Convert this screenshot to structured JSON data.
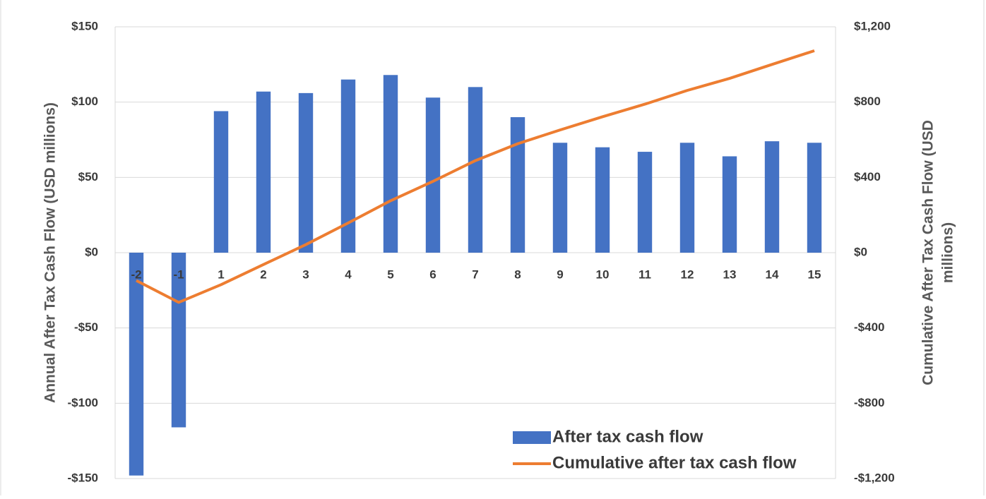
{
  "chart_data": {
    "type": "bar_line",
    "ylabel": "Annual After Tax Cash Flow (USD millions)",
    "y2label": [
      "Cumulative After Tax Cash Flow (USD",
      "millions)"
    ],
    "categories": [
      "-2",
      "-1",
      "1",
      "2",
      "3",
      "4",
      "5",
      "6",
      "7",
      "8",
      "9",
      "10",
      "11",
      "12",
      "13",
      "14",
      "15"
    ],
    "series": [
      {
        "name": "After tax cash flow",
        "type": "bar",
        "color": "#4472c4",
        "axis": "y",
        "values": [
          -148,
          -116,
          94,
          107,
          106,
          115,
          118,
          103,
          110,
          90,
          73,
          70,
          67,
          73,
          64,
          74,
          73
        ]
      },
      {
        "name": "Cumulative after tax cash flow",
        "type": "line",
        "color": "#ed7d31",
        "axis": "y2",
        "values": [
          -148,
          -264,
          -170,
          -63,
          43,
          158,
          276,
          379,
          489,
          579,
          652,
          722,
          789,
          862,
          926,
          1000,
          1073
        ]
      }
    ],
    "ylim": [
      -150,
      150
    ],
    "yticks": [
      {
        "value": -150,
        "label": "-$150"
      },
      {
        "value": -100,
        "label": "-$100"
      },
      {
        "value": -50,
        "label": "-$50"
      },
      {
        "value": 0,
        "label": "$0"
      },
      {
        "value": 50,
        "label": "$50"
      },
      {
        "value": 100,
        "label": "$100"
      },
      {
        "value": 150,
        "label": "$150"
      }
    ],
    "y2lim": [
      -1200,
      1200
    ],
    "y2ticks": [
      {
        "value": -1200,
        "label": "-$1,200"
      },
      {
        "value": -800,
        "label": "-$800"
      },
      {
        "value": -400,
        "label": "-$400"
      },
      {
        "value": 0,
        "label": "$0"
      },
      {
        "value": 400,
        "label": "$400"
      },
      {
        "value": 800,
        "label": "$800"
      },
      {
        "value": 1200,
        "label": "$1,200"
      }
    ],
    "grid": true,
    "legend": "lower right"
  }
}
